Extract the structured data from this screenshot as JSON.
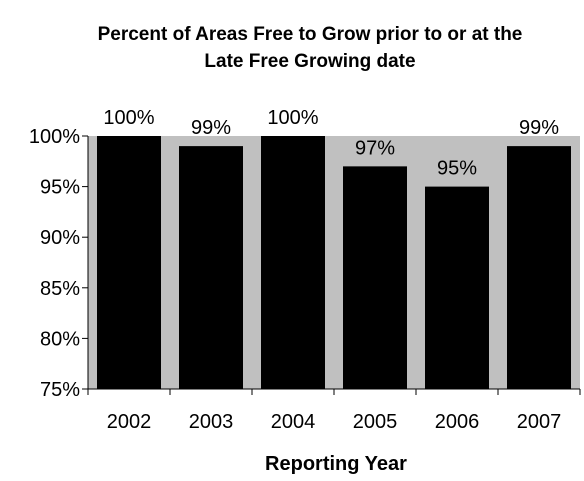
{
  "chart_data": {
    "type": "bar",
    "title": [
      "Percent of Areas Free to Grow prior to or at the",
      "Late Free Growing date"
    ],
    "xlabel": "Reporting Year",
    "ylabel": "",
    "categories": [
      "2002",
      "2003",
      "2004",
      "2005",
      "2006",
      "2007"
    ],
    "values": [
      100,
      99,
      100,
      97,
      95,
      99
    ],
    "data_labels": [
      "100%",
      "99%",
      "100%",
      "97%",
      "95%",
      "99%"
    ],
    "ylim": [
      75,
      100
    ],
    "yticks": [
      75,
      80,
      85,
      90,
      95,
      100
    ],
    "ytick_labels": [
      "75%",
      "80%",
      "85%",
      "90%",
      "95%",
      "100%"
    ],
    "grid": false,
    "legend": "none",
    "colors": {
      "plot_background": "#c0c0c0",
      "bar_fill": "#000000",
      "axis": "#000000"
    }
  }
}
